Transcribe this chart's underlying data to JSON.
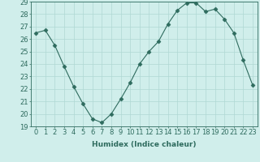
{
  "x": [
    0,
    1,
    2,
    3,
    4,
    5,
    6,
    7,
    8,
    9,
    10,
    11,
    12,
    13,
    14,
    15,
    16,
    17,
    18,
    19,
    20,
    21,
    22,
    23
  ],
  "y": [
    26.5,
    26.7,
    25.5,
    23.8,
    22.2,
    20.8,
    19.6,
    19.3,
    20.0,
    21.2,
    22.5,
    24.0,
    25.0,
    25.8,
    27.2,
    28.3,
    28.9,
    28.9,
    28.2,
    28.4,
    27.6,
    26.5,
    24.3,
    22.3
  ],
  "line_color": "#2e6b5e",
  "marker": "D",
  "marker_size": 2.5,
  "bg_color": "#d0eeeb",
  "grid_color": "#b0d8d4",
  "xlabel": "Humidex (Indice chaleur)",
  "ylim": [
    19,
    29
  ],
  "xlim_min": -0.5,
  "xlim_max": 23.5,
  "yticks": [
    19,
    20,
    21,
    22,
    23,
    24,
    25,
    26,
    27,
    28,
    29
  ],
  "xticks": [
    0,
    1,
    2,
    3,
    4,
    5,
    6,
    7,
    8,
    9,
    10,
    11,
    12,
    13,
    14,
    15,
    16,
    17,
    18,
    19,
    20,
    21,
    22,
    23
  ],
  "xlabel_fontsize": 6.5,
  "tick_fontsize": 6.0
}
